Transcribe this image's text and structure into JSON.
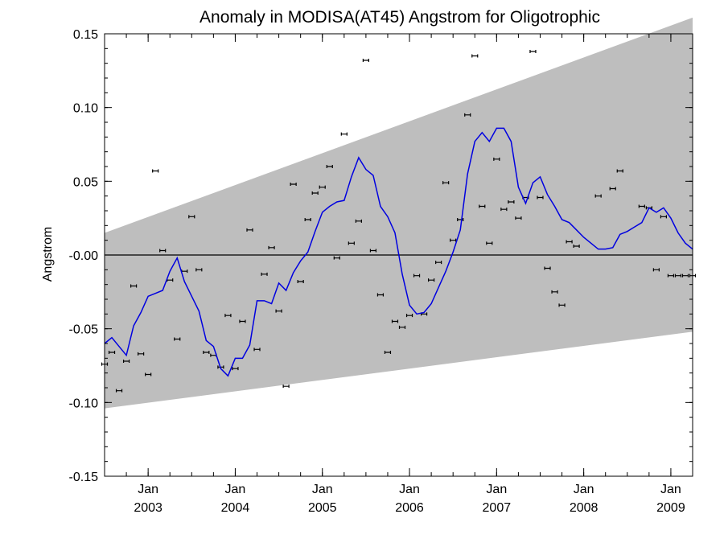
{
  "chart_data": {
    "type": "line",
    "title": "Anomaly in MODISA(AT45) Angstrom for Oligotrophic",
    "xlabel": "",
    "ylabel": "Angstrom",
    "ylim": [
      -0.15,
      0.15
    ],
    "xlim": [
      "2002-07",
      "2009-04"
    ],
    "y_ticks": [
      "0.15",
      "0.10",
      "0.05",
      "-0.00",
      "-0.05",
      "-0.10",
      "-0.15"
    ],
    "y_tick_values": [
      0.15,
      0.1,
      0.05,
      0.0,
      -0.05,
      -0.1,
      -0.15
    ],
    "x_ticks": [
      {
        "month": "Jan",
        "year": "2003",
        "date": "2003-01"
      },
      {
        "month": "Jan",
        "year": "2004",
        "date": "2004-01"
      },
      {
        "month": "Jan",
        "year": "2005",
        "date": "2005-01"
      },
      {
        "month": "Jan",
        "year": "2006",
        "date": "2006-01"
      },
      {
        "month": "Jan",
        "year": "2007",
        "date": "2007-01"
      },
      {
        "month": "Jan",
        "year": "2008",
        "date": "2008-01"
      },
      {
        "month": "Jan",
        "year": "2009",
        "date": "2009-01"
      }
    ],
    "band": {
      "start": "2002-07",
      "end": "2009-04",
      "upper": [
        0.015,
        0.161
      ],
      "lower": [
        -0.104,
        -0.052
      ],
      "color": "#bebebe"
    },
    "zero_line": 0.0,
    "series": [
      {
        "kind": "points",
        "color": "#000000",
        "dates": [
          "2002-07",
          "2002-08",
          "2002-09",
          "2002-10",
          "2002-11",
          "2002-12",
          "2003-01",
          "2003-02",
          "2003-03",
          "2003-04",
          "2003-05",
          "2003-06",
          "2003-07",
          "2003-08",
          "2003-09",
          "2003-10",
          "2003-11",
          "2003-12",
          "2004-01",
          "2004-02",
          "2004-03",
          "2004-04",
          "2004-05",
          "2004-06",
          "2004-07",
          "2004-08",
          "2004-09",
          "2004-10",
          "2004-11",
          "2004-12",
          "2005-01",
          "2005-02",
          "2005-03",
          "2005-04",
          "2005-05",
          "2005-06",
          "2005-07",
          "2005-08",
          "2005-09",
          "2005-10",
          "2005-11",
          "2005-12",
          "2006-01",
          "2006-02",
          "2006-03",
          "2006-04",
          "2006-05",
          "2006-06",
          "2006-07",
          "2006-08",
          "2006-09",
          "2006-10",
          "2006-11",
          "2006-12",
          "2007-01",
          "2007-02",
          "2007-03",
          "2007-04",
          "2007-05",
          "2007-06",
          "2007-07",
          "2007-08",
          "2007-09",
          "2007-10",
          "2007-11",
          "2007-12",
          "2008-03",
          "2008-05",
          "2008-06",
          "2008-09",
          "2008-10",
          "2008-11",
          "2008-12",
          "2009-01",
          "2009-02",
          "2009-03",
          "2009-04"
        ],
        "values": [
          -0.074,
          -0.066,
          -0.092,
          -0.072,
          -0.021,
          -0.067,
          -0.081,
          0.057,
          0.003,
          -0.017,
          -0.057,
          -0.011,
          0.026,
          -0.01,
          -0.066,
          -0.068,
          -0.076,
          -0.041,
          -0.077,
          -0.045,
          0.017,
          -0.064,
          -0.013,
          0.005,
          -0.038,
          -0.089,
          0.048,
          -0.018,
          0.024,
          0.042,
          0.046,
          0.06,
          -0.002,
          0.082,
          0.008,
          0.023,
          0.132,
          0.003,
          -0.027,
          -0.066,
          -0.045,
          -0.049,
          -0.041,
          -0.014,
          -0.04,
          -0.017,
          -0.005,
          0.049,
          0.01,
          0.024,
          0.095,
          0.135,
          0.033,
          0.008,
          0.065,
          0.031,
          0.036,
          0.025,
          0.039,
          0.138,
          0.039,
          -0.009,
          -0.025,
          -0.034,
          0.009,
          0.006,
          0.04,
          0.045,
          0.057,
          0.033,
          0.032,
          -0.01,
          0.026,
          -0.014,
          -0.014,
          -0.014,
          -0.014
        ]
      },
      {
        "kind": "line",
        "color": "#0000e0",
        "dates": [
          "2002-07",
          "2002-08",
          "2002-09",
          "2002-10",
          "2002-11",
          "2002-12",
          "2003-01",
          "2003-02",
          "2003-03",
          "2003-04",
          "2003-05",
          "2003-06",
          "2003-07",
          "2003-08",
          "2003-09",
          "2003-10",
          "2003-11",
          "2003-12",
          "2004-01",
          "2004-02",
          "2004-03",
          "2004-04",
          "2004-05",
          "2004-06",
          "2004-07",
          "2004-08",
          "2004-09",
          "2004-10",
          "2004-11",
          "2004-12",
          "2005-01",
          "2005-02",
          "2005-03",
          "2005-04",
          "2005-05",
          "2005-06",
          "2005-07",
          "2005-08",
          "2005-09",
          "2005-10",
          "2005-11",
          "2005-12",
          "2006-01",
          "2006-02",
          "2006-03",
          "2006-04",
          "2006-05",
          "2006-06",
          "2006-07",
          "2006-08",
          "2006-09",
          "2006-10",
          "2006-11",
          "2006-12",
          "2007-01",
          "2007-02",
          "2007-03",
          "2007-04",
          "2007-05",
          "2007-06",
          "2007-07",
          "2007-08",
          "2007-09",
          "2007-10",
          "2007-11",
          "2007-12",
          "2008-01",
          "2008-02",
          "2008-03",
          "2008-04",
          "2008-05",
          "2008-06",
          "2008-07",
          "2008-08",
          "2008-09",
          "2008-10",
          "2008-11",
          "2008-12",
          "2009-01",
          "2009-02",
          "2009-03",
          "2009-04"
        ],
        "values": [
          -0.06,
          -0.056,
          -0.062,
          -0.068,
          -0.048,
          -0.039,
          -0.028,
          -0.026,
          -0.024,
          -0.011,
          -0.002,
          -0.018,
          -0.028,
          -0.038,
          -0.058,
          -0.062,
          -0.077,
          -0.082,
          -0.07,
          -0.07,
          -0.061,
          -0.031,
          -0.031,
          -0.033,
          -0.019,
          -0.024,
          -0.012,
          -0.004,
          0.002,
          0.016,
          0.029,
          0.033,
          0.036,
          0.037,
          0.053,
          0.066,
          0.058,
          0.054,
          0.033,
          0.026,
          0.015,
          -0.013,
          -0.034,
          -0.04,
          -0.039,
          -0.033,
          -0.022,
          -0.011,
          0.002,
          0.017,
          0.055,
          0.077,
          0.083,
          0.077,
          0.086,
          0.086,
          0.077,
          0.046,
          0.035,
          0.049,
          0.053,
          0.041,
          0.033,
          0.024,
          0.022,
          0.017,
          0.012,
          0.008,
          0.004,
          0.004,
          0.005,
          0.014,
          0.016,
          0.019,
          0.022,
          0.032,
          0.029,
          0.032,
          0.025,
          0.015,
          0.008,
          0.004
        ]
      }
    ]
  }
}
